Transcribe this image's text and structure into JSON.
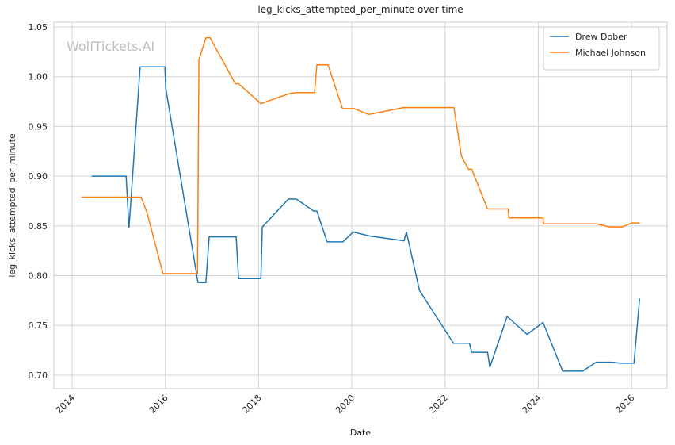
{
  "chart_data": {
    "type": "line",
    "title": "leg_kicks_attempted_per_minute over time",
    "xlabel": "Date",
    "ylabel": "leg_kicks_attempted_per_minute",
    "watermark": "WolfTickets.AI",
    "xlim": [
      2013.61,
      2026.76
    ],
    "ylim": [
      0.6864,
      1.0548
    ],
    "xticks": [
      2014,
      2016,
      2018,
      2020,
      2022,
      2024,
      2026
    ],
    "yticks": [
      {
        "value": 0.7,
        "label": "0.70"
      },
      0.75,
      {
        "value": 0.8,
        "label": "0.80"
      },
      0.85,
      {
        "value": 0.9,
        "label": "0.90"
      },
      0.95,
      {
        "value": 1.0,
        "label": "1.00"
      },
      1.05
    ],
    "grid": true,
    "legend": "upper right",
    "series": [
      {
        "name": "Drew Dober",
        "color": "#1f77b4",
        "x": [
          2014.42,
          2015.16,
          2015.22,
          2015.46,
          2015.99,
          2016.01,
          2016.7,
          2016.87,
          2016.94,
          2017.52,
          2017.57,
          2018.05,
          2018.08,
          2018.64,
          2018.81,
          2019.18,
          2019.25,
          2019.47,
          2019.81,
          2020.03,
          2020.37,
          2021.12,
          2021.17,
          2021.45,
          2022.18,
          2022.52,
          2022.57,
          2022.91,
          2022.96,
          2023.33,
          2023.76,
          2024.1,
          2024.52,
          2024.95,
          2025.24,
          2025.58,
          2025.76,
          2026.05,
          2026.17
        ],
        "values": [
          0.9,
          0.9,
          0.848,
          1.01,
          1.01,
          0.988,
          0.793,
          0.793,
          0.839,
          0.839,
          0.797,
          0.797,
          0.849,
          0.877,
          0.877,
          0.865,
          0.865,
          0.834,
          0.834,
          0.844,
          0.84,
          0.835,
          0.844,
          0.785,
          0.732,
          0.732,
          0.723,
          0.723,
          0.708,
          0.759,
          0.741,
          0.753,
          0.704,
          0.704,
          0.713,
          0.713,
          0.712,
          0.712,
          0.777
        ]
      },
      {
        "name": "Michael Johnson",
        "color": "#ff7f0e",
        "x": [
          2014.2,
          2015.48,
          2015.61,
          2015.95,
          2016.69,
          2016.72,
          2016.87,
          2016.96,
          2017.5,
          2017.57,
          2018.05,
          2018.66,
          2018.81,
          2019.2,
          2019.25,
          2019.49,
          2019.8,
          2020.05,
          2020.36,
          2021.11,
          2022.19,
          2022.35,
          2022.5,
          2022.57,
          2022.91,
          2023.35,
          2023.37,
          2024.1,
          2024.11,
          2024.61,
          2024.95,
          2025.24,
          2025.54,
          2025.8,
          2026.0,
          2026.17
        ],
        "values": [
          0.879,
          0.879,
          0.863,
          0.802,
          0.802,
          1.017,
          1.039,
          1.039,
          0.993,
          0.993,
          0.973,
          0.983,
          0.984,
          0.984,
          1.012,
          1.012,
          0.968,
          0.968,
          0.962,
          0.969,
          0.969,
          0.92,
          0.907,
          0.907,
          0.867,
          0.867,
          0.858,
          0.858,
          0.852,
          0.852,
          0.852,
          0.852,
          0.849,
          0.849,
          0.853,
          0.853
        ]
      }
    ]
  }
}
